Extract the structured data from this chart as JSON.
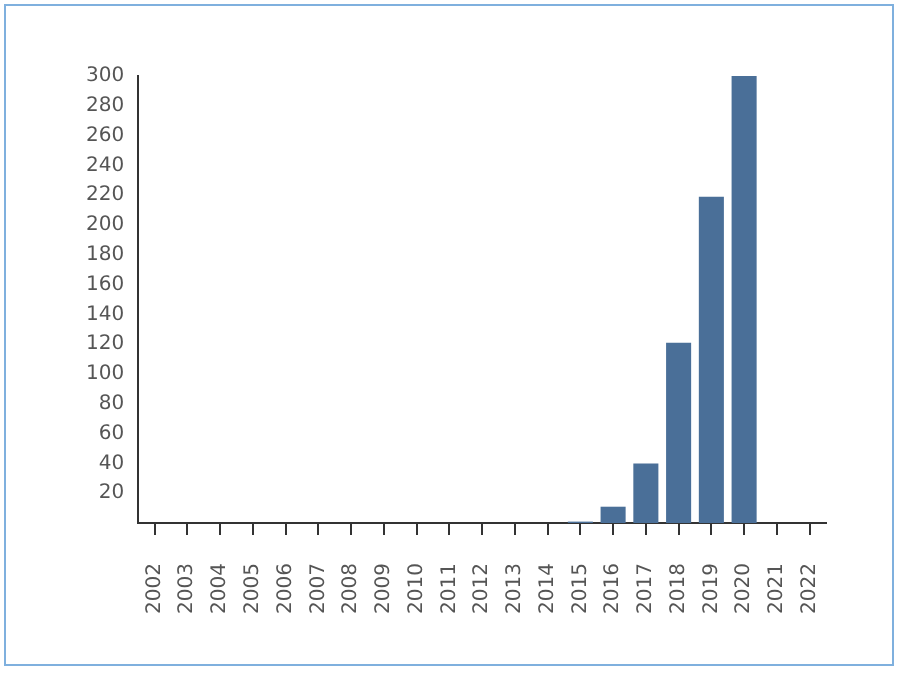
{
  "chart_data": {
    "type": "bar",
    "categories": [
      "2002",
      "2003",
      "2004",
      "2005",
      "2006",
      "2007",
      "2008",
      "2009",
      "2010",
      "2011",
      "2012",
      "2013",
      "2014",
      "2015",
      "2016",
      "2017",
      "2018",
      "2019",
      "2020",
      "2021",
      "2022"
    ],
    "values": [
      0,
      0,
      0,
      0,
      0,
      0,
      0,
      0,
      0,
      0,
      0,
      0,
      0,
      1,
      11,
      40,
      121,
      219,
      300,
      0,
      0
    ],
    "color": "#4a6f98",
    "ylim": [
      0,
      300
    ],
    "yticks": [
      20,
      40,
      60,
      80,
      100,
      120,
      140,
      160,
      180,
      200,
      220,
      240,
      260,
      280,
      300
    ],
    "grid": false,
    "legend": false
  }
}
